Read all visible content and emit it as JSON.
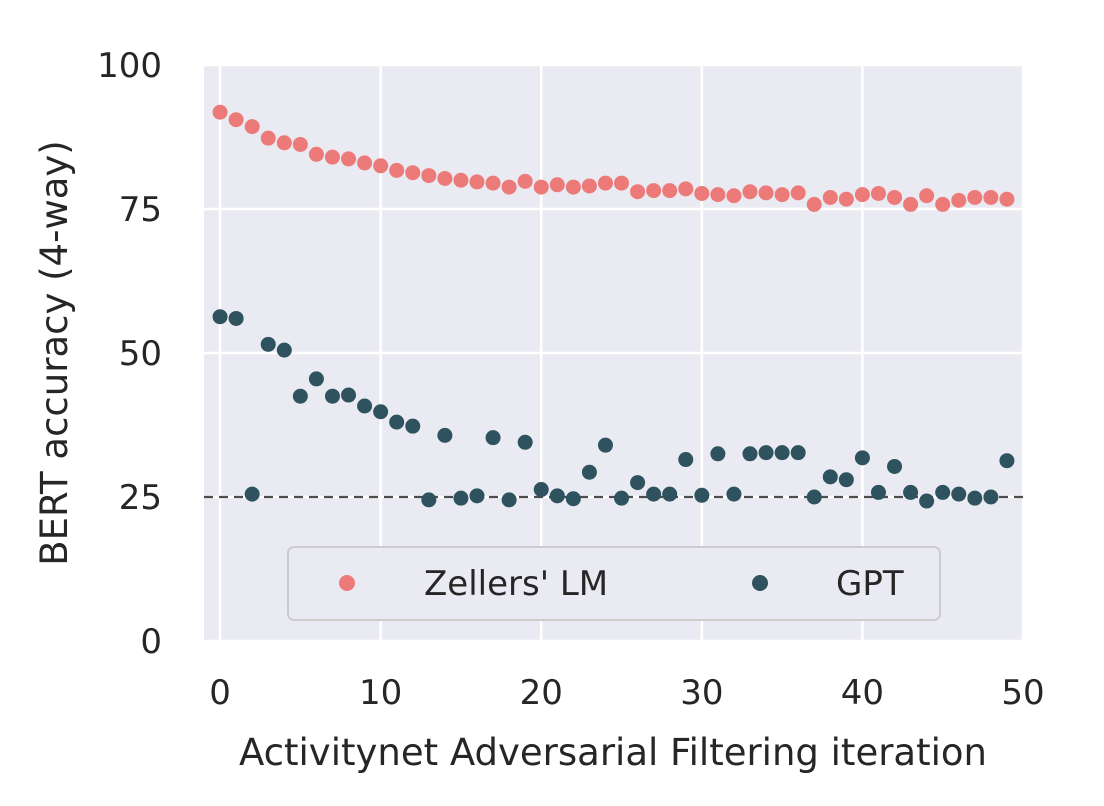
{
  "chart_data": {
    "type": "scatter",
    "xlabel": "Activitynet Adversarial Filtering iteration",
    "ylabel": "BERT accuracy (4-way)",
    "xlim": [
      -1,
      50
    ],
    "ylim": [
      0,
      100
    ],
    "xticks": [
      0,
      10,
      20,
      30,
      40,
      50
    ],
    "yticks": [
      0,
      25,
      50,
      75,
      100
    ],
    "grid": true,
    "background": "#eaeaf2",
    "legend_placement": "lower-center",
    "reference_line": {
      "y": 25,
      "style": "dashed",
      "color": "#4d4d4d"
    },
    "series": [
      {
        "name": "Zellers' LM",
        "color": "#ec7a79",
        "x": [
          0,
          1,
          2,
          3,
          4,
          5,
          6,
          7,
          8,
          9,
          10,
          11,
          12,
          13,
          14,
          15,
          16,
          17,
          18,
          19,
          20,
          21,
          22,
          23,
          24,
          25,
          26,
          27,
          28,
          29,
          30,
          31,
          32,
          33,
          34,
          35,
          36,
          37,
          38,
          39,
          40,
          41,
          42,
          43,
          44,
          45,
          46,
          47,
          48,
          49
        ],
        "y": [
          91.8,
          90.5,
          89.3,
          87.3,
          86.5,
          86.2,
          84.5,
          84.0,
          83.7,
          83.0,
          82.5,
          81.7,
          81.3,
          80.8,
          80.3,
          80.0,
          79.7,
          79.5,
          78.8,
          79.8,
          78.8,
          79.2,
          78.8,
          79.0,
          79.5,
          79.5,
          78.0,
          78.2,
          78.2,
          78.5,
          77.7,
          77.5,
          77.3,
          78.0,
          77.8,
          77.5,
          77.8,
          75.8,
          77.0,
          76.7,
          77.5,
          77.7,
          77.0,
          75.8,
          77.3,
          75.8,
          76.5,
          77.0,
          77.0,
          76.7
        ]
      },
      {
        "name": "GPT",
        "color": "#2e525e",
        "x": [
          0,
          1,
          2,
          3,
          4,
          5,
          6,
          7,
          8,
          9,
          10,
          11,
          12,
          13,
          14,
          15,
          16,
          17,
          18,
          19,
          20,
          21,
          22,
          23,
          24,
          25,
          26,
          27,
          28,
          29,
          30,
          31,
          32,
          33,
          34,
          35,
          36,
          37,
          38,
          39,
          40,
          41,
          42,
          43,
          44,
          45,
          46,
          47,
          48,
          49
        ],
        "y": [
          56.3,
          56.0,
          25.5,
          51.5,
          50.5,
          42.5,
          45.5,
          42.5,
          42.7,
          40.8,
          39.8,
          38.0,
          37.3,
          24.5,
          35.7,
          24.8,
          25.2,
          35.3,
          24.5,
          34.5,
          26.3,
          25.2,
          24.7,
          29.3,
          34.0,
          24.8,
          27.5,
          25.5,
          25.5,
          31.5,
          25.3,
          32.5,
          25.5,
          32.5,
          32.7,
          32.7,
          32.7,
          25.0,
          28.5,
          28.0,
          31.8,
          25.8,
          30.3,
          25.8,
          24.3,
          25.8,
          25.5,
          24.8,
          25.0,
          31.3
        ]
      }
    ]
  }
}
